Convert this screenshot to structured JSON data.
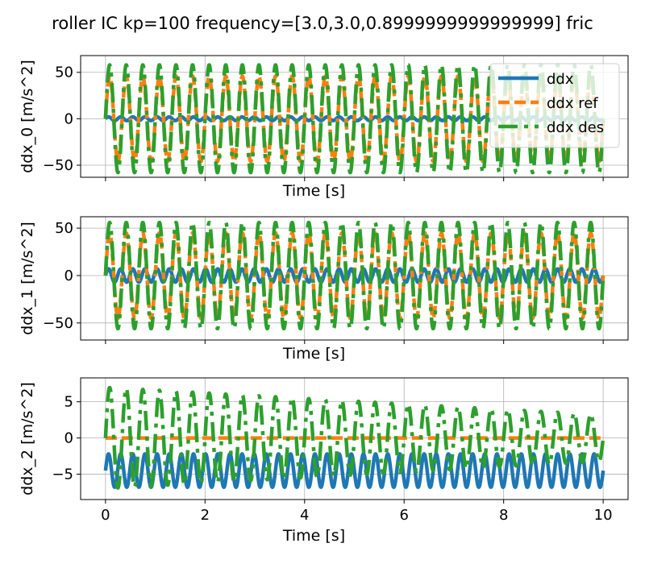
{
  "figure": {
    "title": "roller IC kp=100 frequency=[3.0,3.0,0.8999999999999999] fric"
  },
  "colors": {
    "ddx": "#1f77b4",
    "ddx_ref": "#ff7f0e",
    "ddx_des": "#2ca02c",
    "grid": "#b0b0b0",
    "axes": "#000000"
  },
  "chart_data": [
    {
      "type": "line",
      "xlabel": "Time [s]",
      "ylabel": "ddx_0 [m/s^2]",
      "xlim": [
        -0.5,
        10.5
      ],
      "ylim": [
        -63,
        68
      ],
      "xticks": [
        0,
        2,
        4,
        6,
        8,
        10
      ],
      "xtick_labels_visible": false,
      "yticks": [
        -50,
        0,
        50
      ],
      "ytick_labels": [
        "−50",
        "0",
        "50"
      ],
      "grid": true,
      "legend": {
        "position": "top-right",
        "entries": [
          "ddx",
          "ddx ref",
          "ddx des"
        ]
      },
      "series": [
        {
          "name": "ddx",
          "style": "solid",
          "shape": "sine",
          "amplitude": 2,
          "frequency": 4.1,
          "offset": 0,
          "x_range": [
            0,
            10
          ]
        },
        {
          "name": "ddx ref",
          "style": "dashed",
          "shape": "sine",
          "amplitude": 46,
          "frequency": 3.0,
          "offset": 0,
          "x_range": [
            0,
            10
          ]
        },
        {
          "name": "ddx des",
          "style": "dashdot",
          "shape": "sine",
          "amplitude": 58,
          "frequency": 3.0,
          "offset": 0,
          "x_range": [
            0,
            10
          ]
        }
      ]
    },
    {
      "type": "line",
      "xlabel": "Time [s]",
      "ylabel": "ddx_1 [m/s^2]",
      "xlim": [
        -0.5,
        10.5
      ],
      "ylim": [
        -68,
        62
      ],
      "xticks": [
        0,
        2,
        4,
        6,
        8,
        10
      ],
      "xtick_labels_visible": false,
      "yticks": [
        -50,
        0,
        50
      ],
      "ytick_labels": [
        "−50",
        "0",
        "50"
      ],
      "grid": true,
      "series": [
        {
          "name": "ddx",
          "style": "solid",
          "shape": "sine",
          "amplitude": 7,
          "frequency": 4.1,
          "offset": 0,
          "x_range": [
            0,
            10
          ]
        },
        {
          "name": "ddx ref",
          "style": "dashed",
          "shape": "sine",
          "amplitude": 45,
          "frequency": 3.0,
          "offset": 0,
          "x_range": [
            0,
            10
          ]
        },
        {
          "name": "ddx des",
          "style": "dashdot",
          "shape": "sine",
          "amplitude": 56,
          "frequency": 3.0,
          "offset": 0,
          "x_range": [
            0,
            10
          ]
        }
      ]
    },
    {
      "type": "line",
      "xlabel": "Time [s]",
      "ylabel": "ddx_2 [m/s^2]",
      "xlim": [
        -0.5,
        10.5
      ],
      "ylim": [
        -8.5,
        8.3
      ],
      "xticks": [
        0,
        2,
        4,
        6,
        8,
        10
      ],
      "xtick_labels": [
        "0",
        "2",
        "4",
        "6",
        "8",
        "10"
      ],
      "xtick_labels_visible": true,
      "yticks": [
        -5,
        0,
        5
      ],
      "ytick_labels": [
        "−5",
        "0",
        "5"
      ],
      "grid": true,
      "series": [
        {
          "name": "ddx",
          "style": "solid",
          "shape": "sine",
          "amplitude": 2.3,
          "frequency": 4.1,
          "offset": -4.5,
          "x_range": [
            0,
            10
          ]
        },
        {
          "name": "ddx ref",
          "style": "dashed",
          "shape": "constant",
          "value": 0,
          "x_range": [
            0,
            10
          ]
        },
        {
          "name": "ddx des",
          "style": "dashdot",
          "shape": "decaying sine",
          "amplitude_start": 7,
          "amplitude_end": 3.2,
          "frequency": 3.0,
          "offset": 0,
          "x_range": [
            0,
            10
          ]
        }
      ]
    }
  ]
}
